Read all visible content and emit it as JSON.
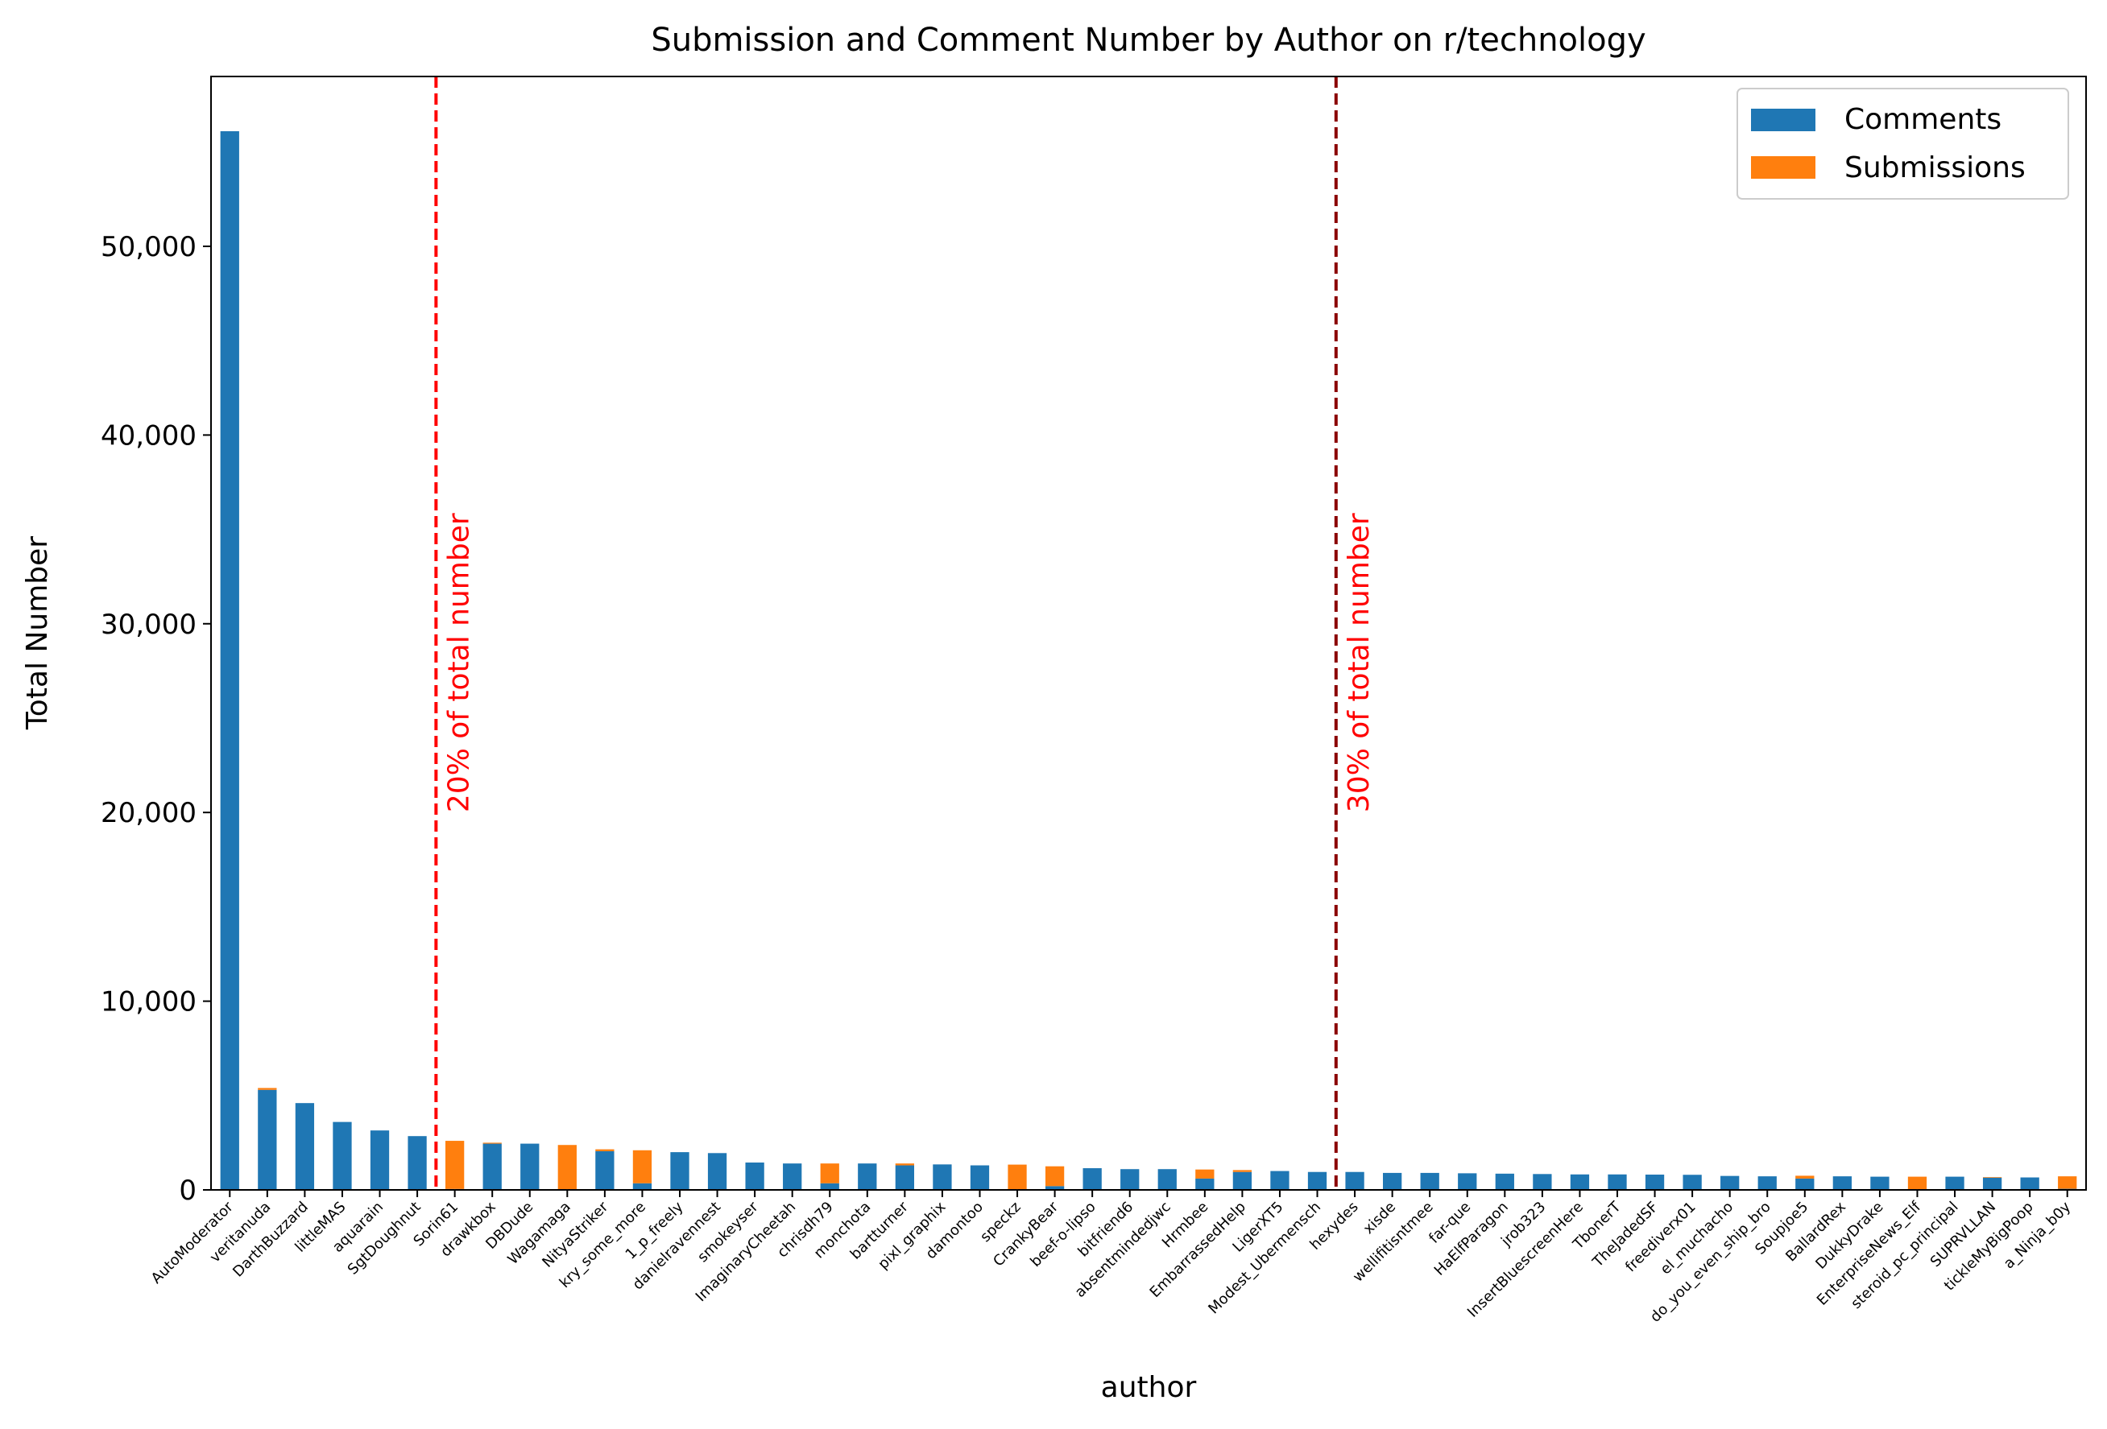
{
  "chart_data": {
    "type": "bar",
    "stacked": true,
    "title": "Submission and Comment Number by Author on r/technology",
    "xlabel": "author",
    "ylabel": "Total Number",
    "ylim": [
      0,
      59000
    ],
    "yticks": [
      0,
      10000,
      20000,
      30000,
      40000,
      50000
    ],
    "ytick_labels": [
      "0",
      "10,000",
      "20,000",
      "30,000",
      "40,000",
      "50,000"
    ],
    "grid": false,
    "legend_position": "top-right",
    "categories": [
      "AutoModerator",
      "veritanuda",
      "DarthBuzzard",
      "littleMAS",
      "aquarain",
      "SgtDoughnut",
      "Sorin61",
      "drawkbox",
      "DBDude",
      "Wagamaga",
      "NityaStriker",
      "kry_some_more",
      "1_p_freely",
      "danielravennest",
      "smokeyser",
      "ImaginaryCheetah",
      "chrisdh79",
      "monchota",
      "bartturner",
      "pixl_graphix",
      "damontoo",
      "speckz",
      "CrankyBear",
      "beef-o-lipso",
      "bitfriend6",
      "absentmindedjwc",
      "Hrmbee",
      "EmbarrassedHelp",
      "LigerXT5",
      "Modest_Ubermensch",
      "hexydes",
      "xisde",
      "wellifitisntmee",
      "far-que",
      "HaElfParagon",
      "jrob323",
      "InsertBluescreenHere",
      "TbonerT",
      "TheJadedSF",
      "freediverx01",
      "el_muchacho",
      "do_you_even_ship_bro",
      "Soupjoe5",
      "BallardRex",
      "DukkyDrake",
      "EnterpriseNews_Elf",
      "steroid_pc_principal",
      "SUPRVLLAN",
      "tickleMyBigPoop",
      "a_Ninja_b0y"
    ],
    "series": [
      {
        "name": "Comments",
        "color": "#1f77b4",
        "values": [
          56100,
          5300,
          4600,
          3600,
          3150,
          2850,
          50,
          2450,
          2450,
          30,
          2050,
          350,
          2000,
          1950,
          1450,
          1400,
          350,
          1400,
          1300,
          1350,
          1300,
          40,
          200,
          1150,
          1100,
          1100,
          600,
          950,
          1000,
          950,
          950,
          900,
          900,
          880,
          860,
          840,
          820,
          820,
          810,
          800,
          740,
          720,
          600,
          720,
          700,
          40,
          700,
          650,
          660,
          60
        ],
        "name_visible": true
      },
      {
        "name": "Submissions",
        "color": "#ff7f0e",
        "values": [
          0,
          100,
          0,
          0,
          0,
          0,
          2550,
          50,
          0,
          2350,
          100,
          1750,
          0,
          0,
          0,
          0,
          1050,
          0,
          100,
          0,
          0,
          1300,
          1050,
          0,
          0,
          0,
          480,
          100,
          0,
          0,
          0,
          0,
          0,
          0,
          0,
          0,
          0,
          0,
          0,
          0,
          0,
          0,
          150,
          0,
          0,
          660,
          0,
          30,
          0,
          660
        ]
      }
    ],
    "annotations": [
      {
        "label": "20% of total number",
        "after_category": "SgtDoughnut",
        "color": "#ff0000",
        "style": "dashed"
      },
      {
        "label": "30% of total number",
        "after_category": "Modest_Ubermensch",
        "color": "#8b0000",
        "style": "dashed"
      }
    ]
  }
}
